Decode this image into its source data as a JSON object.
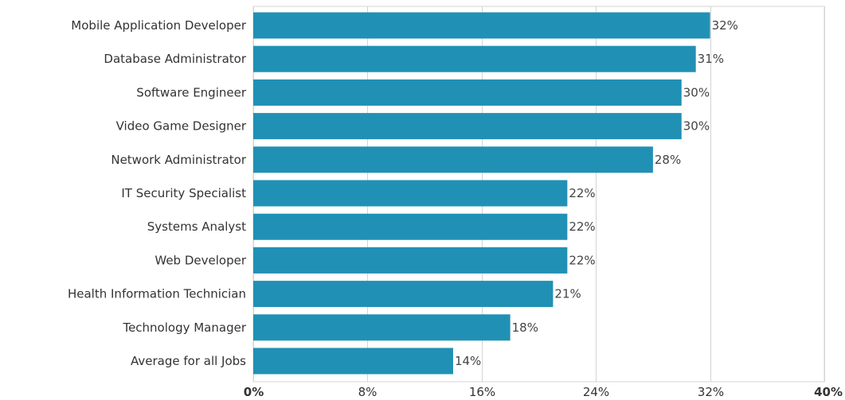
{
  "chart_data": {
    "type": "bar",
    "orientation": "horizontal",
    "categories": [
      "Mobile Application Developer",
      "Database Administrator",
      "Software Engineer",
      "Video Game Designer",
      "Network Administrator",
      "IT Security Specialist",
      "Systems Analyst",
      "Web Developer",
      "Health Information Technician",
      "Technology Manager",
      "Average for all Jobs"
    ],
    "values": [
      32,
      31,
      30,
      30,
      28,
      22,
      22,
      22,
      21,
      18,
      14
    ],
    "value_labels": [
      "32%",
      "31%",
      "30%",
      "30%",
      "28%",
      "22%",
      "22%",
      "22%",
      "21%",
      "18%",
      "14%"
    ],
    "xlim": [
      0,
      40
    ],
    "x_ticks": [
      0,
      8,
      16,
      24,
      32,
      40
    ],
    "x_tick_labels": [
      "0%",
      "8%",
      "16%",
      "24%",
      "32%",
      "40%"
    ],
    "grid": true,
    "legend": "none",
    "colors": {
      "bar": "#2190b5",
      "grid": "#d4d4d4"
    }
  }
}
